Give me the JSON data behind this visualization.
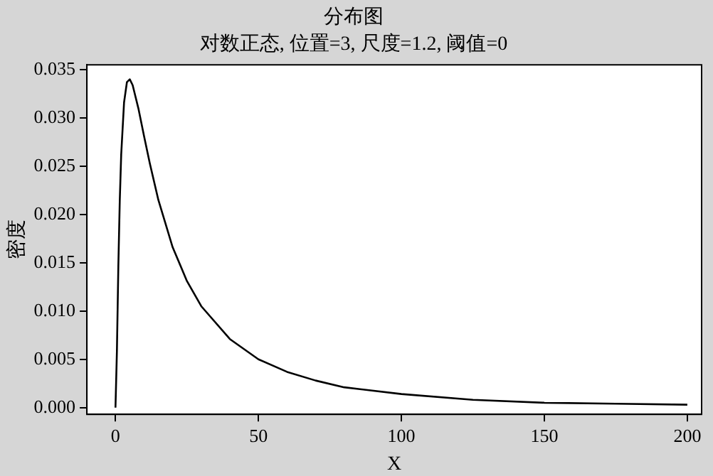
{
  "chart_data": {
    "type": "line",
    "title": "分布图",
    "subtitle": "对数正态, 位置=3, 尺度=1.2, 阈值=0",
    "xlabel": "X",
    "ylabel": "密度",
    "series": [
      {
        "color": "#000000",
        "x": [
          0,
          0.5,
          1,
          1.5,
          2,
          3,
          4,
          5,
          6,
          8,
          10,
          12,
          15,
          20,
          25,
          30,
          40,
          50,
          60,
          70,
          80,
          100,
          125,
          150,
          175,
          200
        ],
        "values": [
          0,
          0.0058,
          0.0146,
          0.0214,
          0.0262,
          0.0316,
          0.0337,
          0.034,
          0.0334,
          0.031,
          0.0281,
          0.0253,
          0.0215,
          0.0166,
          0.0131,
          0.0105,
          0.0071,
          0.005,
          0.0037,
          0.0028,
          0.0021,
          0.0014,
          0.0008,
          0.0005,
          0.0004,
          0.0003
        ]
      }
    ],
    "xlim": [
      -10,
      205
    ],
    "xticks": [
      0,
      50,
      100,
      150,
      200
    ],
    "ylim": [
      -0.0007,
      0.0355
    ],
    "yticks": [
      {
        "value": 0,
        "label": "0.000"
      },
      {
        "value": 0.005,
        "label": "0.005"
      },
      {
        "value": 0.01,
        "label": "0.010"
      },
      {
        "value": 0.015,
        "label": "0.015"
      },
      {
        "value": 0.02,
        "label": "0.020"
      },
      {
        "value": 0.025,
        "label": "0.025"
      },
      {
        "value": 0.03,
        "label": "0.030"
      },
      {
        "value": 0.035,
        "label": "0.035"
      }
    ],
    "grid": false,
    "legend": false,
    "marker": "none",
    "line_style": "solid"
  }
}
